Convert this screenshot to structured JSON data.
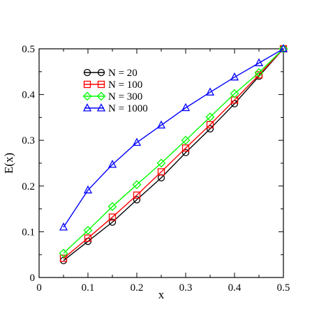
{
  "chart_data": {
    "type": "line",
    "title": "",
    "xlabel": "x",
    "ylabel": "E(x)",
    "xlim": [
      0,
      0.5
    ],
    "ylim": [
      0,
      0.5
    ],
    "xticks": [
      0,
      0.1,
      0.2,
      0.3,
      0.4,
      0.5
    ],
    "yticks": [
      0,
      0.1,
      0.2,
      0.3,
      0.4,
      0.5
    ],
    "grid": false,
    "legend_position": "top-left",
    "x": [
      0.05,
      0.1,
      0.15,
      0.2,
      0.25,
      0.3,
      0.35,
      0.4,
      0.45,
      0.5
    ],
    "series": [
      {
        "name": "N = 20",
        "color": "#000000",
        "marker": "circle",
        "values": [
          0.037,
          0.079,
          0.121,
          0.17,
          0.218,
          0.273,
          0.325,
          0.38,
          0.44,
          0.5
        ]
      },
      {
        "name": "N = 100",
        "color": "#ff0000",
        "marker": "square",
        "values": [
          0.042,
          0.086,
          0.132,
          0.18,
          0.231,
          0.283,
          0.334,
          0.388,
          0.443,
          0.5
        ]
      },
      {
        "name": "N = 300",
        "color": "#00ff00",
        "marker": "diamond",
        "values": [
          0.053,
          0.103,
          0.155,
          0.203,
          0.25,
          0.3,
          0.351,
          0.402,
          0.448,
          0.5
        ]
      },
      {
        "name": "N = 1000",
        "color": "#0000ff",
        "marker": "triangle-up",
        "values": [
          0.11,
          0.191,
          0.247,
          0.295,
          0.333,
          0.371,
          0.405,
          0.438,
          0.469,
          0.5
        ]
      }
    ]
  }
}
